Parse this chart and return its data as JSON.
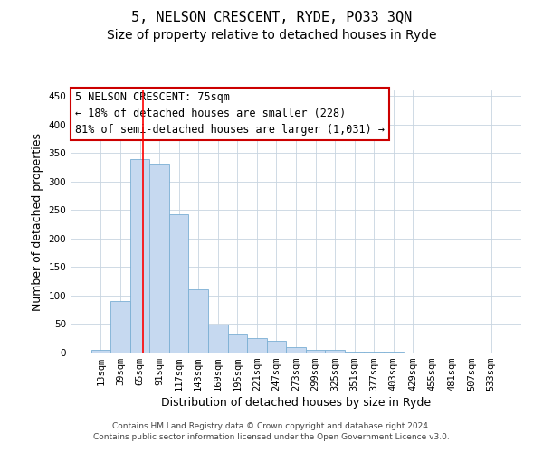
{
  "title": "5, NELSON CRESCENT, RYDE, PO33 3QN",
  "subtitle": "Size of property relative to detached houses in Ryde",
  "xlabel": "Distribution of detached houses by size in Ryde",
  "ylabel": "Number of detached properties",
  "bar_color": "#c6d9f0",
  "bar_edge_color": "#7bafd4",
  "bar_edge_width": 0.6,
  "grid_color": "#c8d4e0",
  "categories": [
    "13sqm",
    "39sqm",
    "65sqm",
    "91sqm",
    "117sqm",
    "143sqm",
    "169sqm",
    "195sqm",
    "221sqm",
    "247sqm",
    "273sqm",
    "299sqm",
    "325sqm",
    "351sqm",
    "377sqm",
    "403sqm",
    "429sqm",
    "455sqm",
    "481sqm",
    "507sqm",
    "533sqm"
  ],
  "values": [
    5,
    90,
    340,
    332,
    242,
    111,
    49,
    31,
    25,
    20,
    9,
    4,
    4,
    2,
    1,
    1,
    0,
    0,
    0,
    0,
    0
  ],
  "ylim": [
    0,
    460
  ],
  "yticks": [
    0,
    50,
    100,
    150,
    200,
    250,
    300,
    350,
    400,
    450
  ],
  "red_line_x": 2.15,
  "annotation_text": "5 NELSON CRESCENT: 75sqm\n← 18% of detached houses are smaller (228)\n81% of semi-detached houses are larger (1,031) →",
  "annotation_box_color": "#ffffff",
  "annotation_box_edge_color": "#cc0000",
  "footer_text": "Contains HM Land Registry data © Crown copyright and database right 2024.\nContains public sector information licensed under the Open Government Licence v3.0.",
  "title_fontsize": 11,
  "subtitle_fontsize": 10,
  "axis_label_fontsize": 9,
  "tick_fontsize": 7.5,
  "annotation_fontsize": 8.5,
  "footer_fontsize": 6.5
}
